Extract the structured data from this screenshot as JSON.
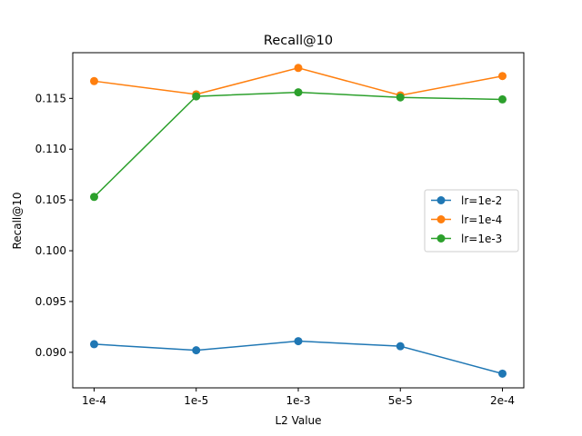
{
  "chart_data": {
    "type": "line",
    "title": "Recall@10",
    "xlabel": "L2 Value",
    "ylabel": "Recall@10",
    "categories": [
      "1e-4",
      "1e-5",
      "1e-3",
      "5e-5",
      "2e-4"
    ],
    "ylim": [
      0.0865,
      0.1195
    ],
    "yticks": [
      0.09,
      0.095,
      0.1,
      0.105,
      0.11,
      0.115
    ],
    "ytick_labels": [
      "0.090",
      "0.095",
      "0.100",
      "0.105",
      "0.110",
      "0.115"
    ],
    "grid": false,
    "legend_position": "center-right",
    "series": [
      {
        "name": "lr=1e-2",
        "color": "#1f77b4",
        "values": [
          0.0908,
          0.0902,
          0.0911,
          0.0906,
          0.0879
        ]
      },
      {
        "name": "lr=1e-4",
        "color": "#ff7f0e",
        "values": [
          0.1167,
          0.1154,
          0.118,
          0.1153,
          0.1172
        ]
      },
      {
        "name": "lr=1e-3",
        "color": "#2ca02c",
        "values": [
          0.1053,
          0.1152,
          0.1156,
          0.1151,
          0.1149
        ]
      }
    ]
  }
}
